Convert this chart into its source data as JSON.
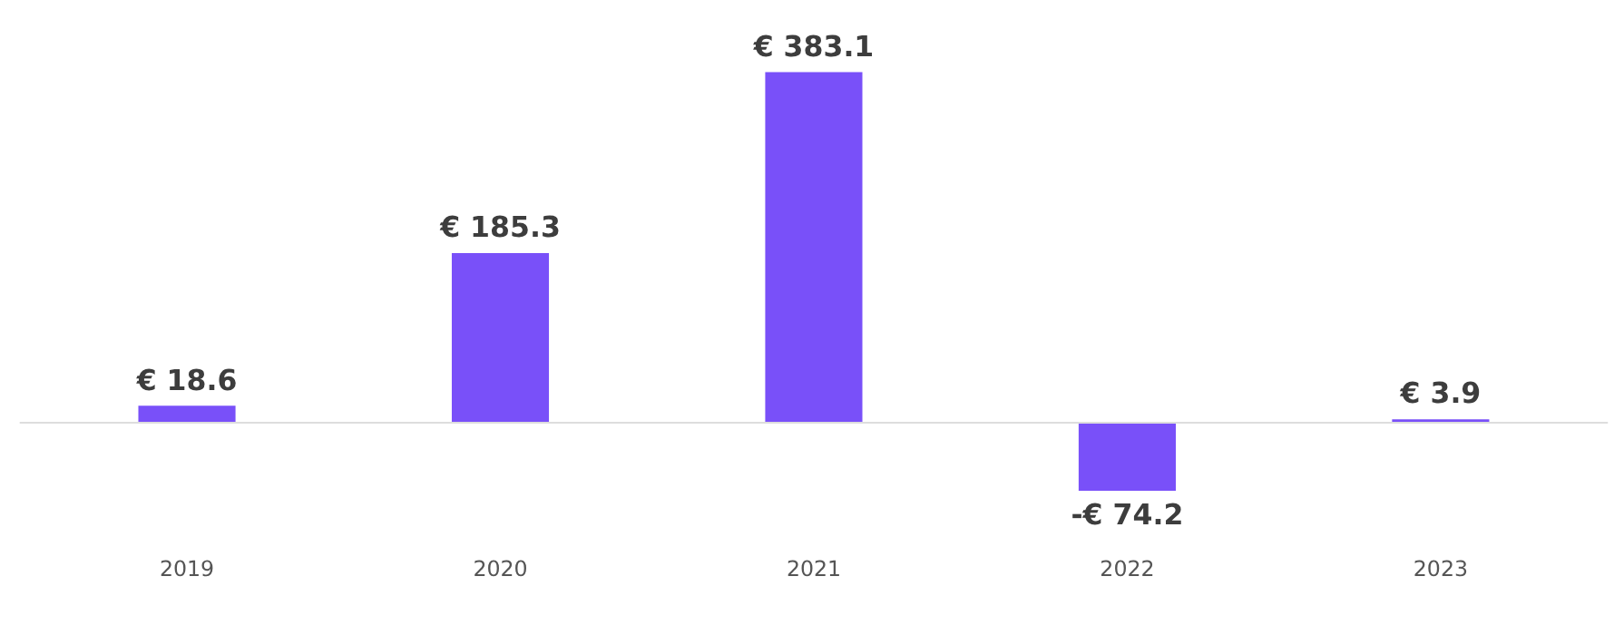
{
  "chart_data": {
    "type": "bar",
    "categories": [
      "2019",
      "2020",
      "2021",
      "2022",
      "2023"
    ],
    "values": [
      18.6,
      185.3,
      383.1,
      -74.2,
      3.9
    ],
    "value_labels": [
      "€ 18.6",
      "€ 185.3",
      "€ 383.1",
      "-€ 74.2",
      "€ 3.9"
    ],
    "color": "#7950f9",
    "grid": false
  }
}
